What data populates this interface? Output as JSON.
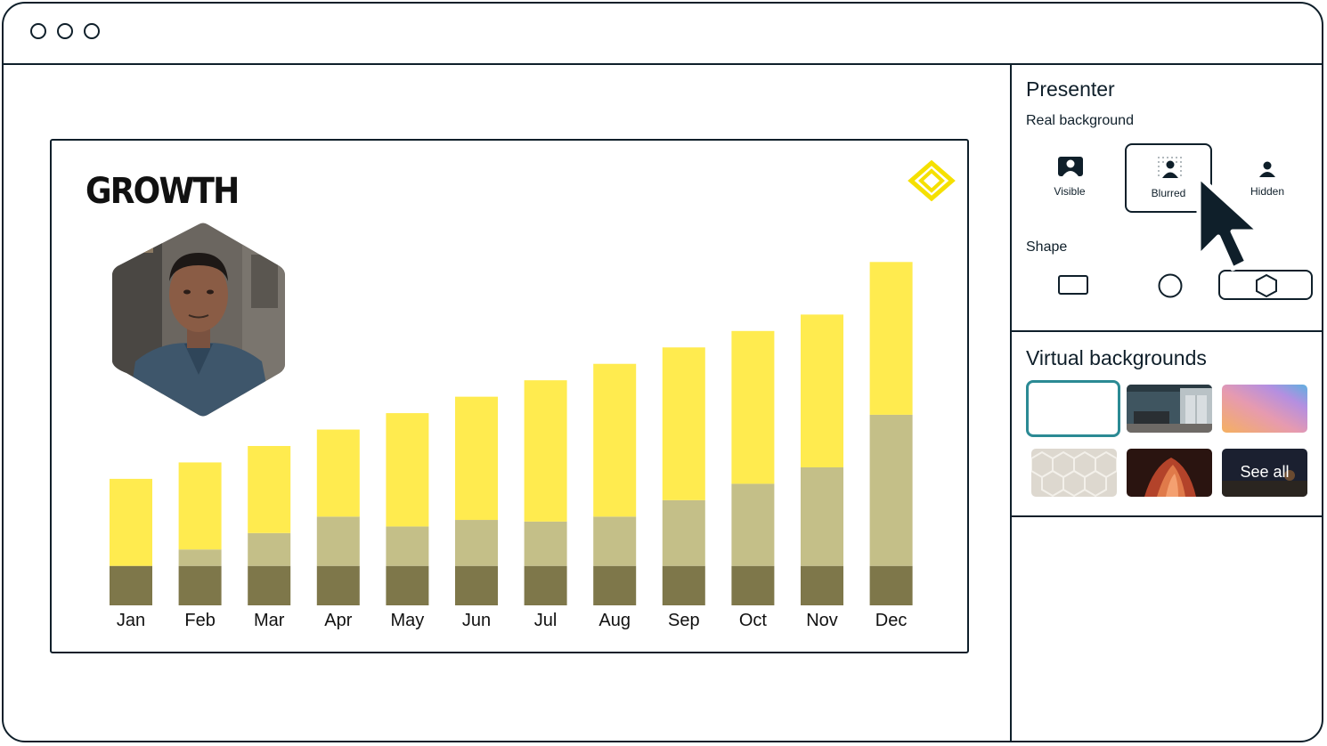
{
  "sidebar": {
    "presenter_title": "Presenter",
    "real_background_label": "Real background",
    "background_options": [
      {
        "label": "Visible",
        "icon": "person-square-icon",
        "selected": false
      },
      {
        "label": "Blurred",
        "icon": "person-blurred-icon",
        "selected": true
      },
      {
        "label": "Hidden",
        "icon": "person-icon",
        "selected": false
      }
    ],
    "shape_label": "Shape",
    "shape_options": [
      {
        "icon": "rectangle-icon",
        "selected": false
      },
      {
        "icon": "circle-icon",
        "selected": false
      },
      {
        "icon": "hexagon-icon",
        "selected": true
      }
    ],
    "virtual_title": "Virtual backgrounds",
    "see_all_label": "See all"
  },
  "slide": {
    "title": "GROWTH"
  },
  "colors": {
    "accent_teal": "#2b8a94",
    "bar_yellow": "#ffeb4f",
    "bar_khaki": "#c4bf88",
    "bar_olive": "#7e774a",
    "ink": "#0f1f2a"
  },
  "chart_data": {
    "type": "bar",
    "stacked": true,
    "categories": [
      "Jan",
      "Feb",
      "Mar",
      "Apr",
      "May",
      "Jun",
      "Jul",
      "Aug",
      "Sep",
      "Oct",
      "Nov",
      "Dec"
    ],
    "series": [
      {
        "values": [
          24,
          24,
          24,
          24,
          24,
          24,
          24,
          24,
          24,
          24,
          24,
          24
        ]
      },
      {
        "values": [
          0,
          10,
          20,
          30,
          24,
          28,
          27,
          30,
          40,
          50,
          60,
          92
        ]
      },
      {
        "values": [
          53,
          53,
          53,
          53,
          69,
          75,
          86,
          93,
          93,
          93,
          93,
          93
        ]
      }
    ],
    "ylim": [
      0,
      220
    ],
    "grid": false
  }
}
